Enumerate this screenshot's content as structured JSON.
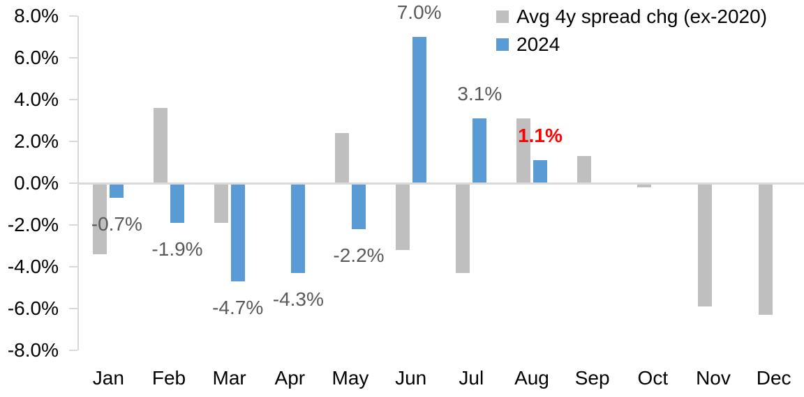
{
  "chart_data": {
    "type": "bar",
    "title": "",
    "xlabel": "",
    "ylabel": "",
    "categories": [
      "Jan",
      "Feb",
      "Mar",
      "Apr",
      "May",
      "Jun",
      "Jul",
      "Aug",
      "Sep",
      "Oct",
      "Nov",
      "Dec"
    ],
    "series": [
      {
        "name": "Avg 4y spread chg (ex-2020)",
        "color": "#BFBFBF",
        "values": [
          -3.4,
          3.6,
          -1.9,
          0.0,
          2.4,
          -3.2,
          -4.3,
          3.1,
          1.3,
          -0.2,
          -5.9,
          -6.3
        ]
      },
      {
        "name": "2024",
        "color": "#5B9BD5",
        "values": [
          -0.7,
          -1.9,
          -4.7,
          -4.3,
          -2.2,
          7.0,
          3.1,
          1.1,
          null,
          null,
          null,
          null
        ]
      }
    ],
    "data_labels": [
      {
        "category": "Jan",
        "text": "-0.7%",
        "value": -0.7,
        "color": "#595959",
        "bold": false
      },
      {
        "category": "Feb",
        "text": "-1.9%",
        "value": -1.9,
        "color": "#595959",
        "bold": false
      },
      {
        "category": "Mar",
        "text": "-4.7%",
        "value": -4.7,
        "color": "#595959",
        "bold": false
      },
      {
        "category": "Apr",
        "text": "-4.3%",
        "value": -4.3,
        "color": "#595959",
        "bold": false
      },
      {
        "category": "May",
        "text": "-2.2%",
        "value": -2.2,
        "color": "#595959",
        "bold": false
      },
      {
        "category": "Jun",
        "text": "7.0%",
        "value": 7.0,
        "color": "#595959",
        "bold": false
      },
      {
        "category": "Jul",
        "text": "3.1%",
        "value": 3.1,
        "color": "#595959",
        "bold": false
      },
      {
        "category": "Aug",
        "text": "1.1%",
        "value": 1.1,
        "color": "#FF0000",
        "bold": true
      }
    ],
    "y_axis": {
      "min": -8,
      "max": 8,
      "step": 2,
      "tick_labels": [
        "8.0%",
        "6.0%",
        "4.0%",
        "2.0%",
        "0.0%",
        "-2.0%",
        "-4.0%",
        "-6.0%",
        "-8.0%"
      ]
    },
    "legend": {
      "position": "top-right",
      "entries": [
        {
          "label": "Avg 4y spread chg (ex-2020)",
          "color": "#BFBFBF"
        },
        {
          "label": "2024",
          "color": "#5B9BD5"
        }
      ]
    },
    "grid": false,
    "axis_color": "#D9D9D9"
  }
}
